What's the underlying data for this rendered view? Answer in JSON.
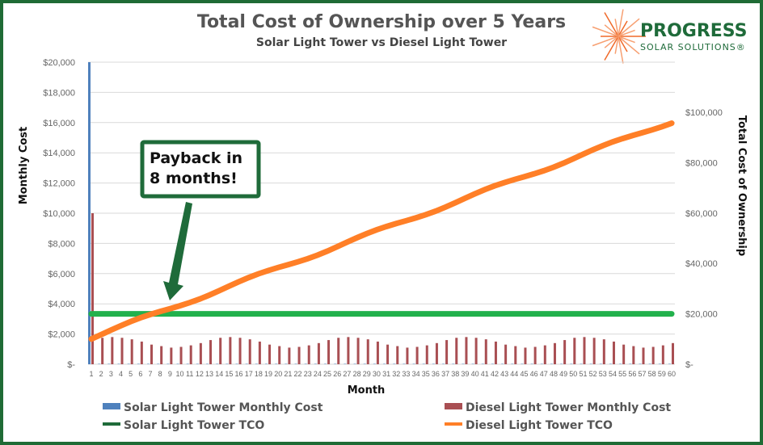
{
  "logo": {
    "name": "PROGRESS",
    "tagline": "SOLAR SOLUTIONS®"
  },
  "annotation": {
    "line1": "Payback in",
    "line2": "8 months!"
  },
  "colors": {
    "solar_monthly": "#4f81bd",
    "diesel_monthly": "#a94f53",
    "solar_tco": "#22b14c",
    "diesel_tco": "#ff7f27",
    "frame": "#1f6b35",
    "annotation": "#1f6b3a"
  },
  "chart_data": {
    "type": "bar+line",
    "title": "Total Cost of Ownership over 5 Years",
    "subtitle": "Solar Light Tower vs Diesel Light Tower",
    "xlabel": "Month",
    "ylabel": "Monthly Cost",
    "y2label": "Total Cost of Ownership",
    "ylim": [
      0,
      20000
    ],
    "y2lim": [
      0,
      120000
    ],
    "yticks": [
      "$-",
      "$2,000",
      "$4,000",
      "$6,000",
      "$8,000",
      "$10,000",
      "$12,000",
      "$14,000",
      "$16,000",
      "$18,000",
      "$20,000"
    ],
    "y2ticks": [
      "$-",
      "$20,000",
      "$40,000",
      "$60,000",
      "$80,000",
      "$100,000"
    ],
    "grid": true,
    "legend_position": "bottom",
    "x": [
      1,
      2,
      3,
      4,
      5,
      6,
      7,
      8,
      9,
      10,
      11,
      12,
      13,
      14,
      15,
      16,
      17,
      18,
      19,
      20,
      21,
      22,
      23,
      24,
      25,
      26,
      27,
      28,
      29,
      30,
      31,
      32,
      33,
      34,
      35,
      36,
      37,
      38,
      39,
      40,
      41,
      42,
      43,
      44,
      45,
      46,
      47,
      48,
      49,
      50,
      51,
      52,
      53,
      54,
      55,
      56,
      57,
      58,
      59,
      60
    ],
    "series": [
      {
        "name": "Solar Light Tower Monthly Cost",
        "type": "bar",
        "axis": "left",
        "values": [
          20000,
          0,
          0,
          0,
          0,
          0,
          0,
          0,
          0,
          0,
          0,
          0,
          0,
          0,
          0,
          0,
          0,
          0,
          0,
          0,
          0,
          0,
          0,
          0,
          0,
          0,
          0,
          0,
          0,
          0,
          0,
          0,
          0,
          0,
          0,
          0,
          0,
          0,
          0,
          0,
          0,
          0,
          0,
          0,
          0,
          0,
          0,
          0,
          0,
          0,
          0,
          0,
          0,
          0,
          0,
          0,
          0,
          0,
          0,
          0
        ]
      },
      {
        "name": "Diesel Light Tower Monthly Cost",
        "type": "bar",
        "axis": "left",
        "values": [
          10000,
          1750,
          1800,
          1750,
          1650,
          1500,
          1300,
          1200,
          1100,
          1150,
          1250,
          1400,
          1600,
          1750,
          1800,
          1750,
          1650,
          1500,
          1300,
          1200,
          1100,
          1150,
          1250,
          1400,
          1600,
          1750,
          1800,
          1750,
          1650,
          1500,
          1300,
          1200,
          1100,
          1150,
          1250,
          1400,
          1600,
          1750,
          1800,
          1750,
          1650,
          1500,
          1300,
          1200,
          1100,
          1150,
          1250,
          1400,
          1600,
          1750,
          1800,
          1750,
          1650,
          1500,
          1300,
          1200,
          1100,
          1150,
          1250,
          1400
        ]
      },
      {
        "name": "Solar Light Tower TCO",
        "type": "line",
        "axis": "right",
        "values": [
          20000,
          20000,
          20000,
          20000,
          20000,
          20000,
          20000,
          20000,
          20000,
          20000,
          20000,
          20000,
          20000,
          20000,
          20000,
          20000,
          20000,
          20000,
          20000,
          20000,
          20000,
          20000,
          20000,
          20000,
          20000,
          20000,
          20000,
          20000,
          20000,
          20000,
          20000,
          20000,
          20000,
          20000,
          20000,
          20000,
          20000,
          20000,
          20000,
          20000,
          20000,
          20000,
          20000,
          20000,
          20000,
          20000,
          20000,
          20000,
          20000,
          20000,
          20000,
          20000,
          20000,
          20000,
          20000,
          20000,
          20000,
          20000,
          20000,
          20000
        ]
      },
      {
        "name": "Diesel Light Tower TCO",
        "type": "line",
        "axis": "right",
        "values": [
          10000,
          11750,
          13550,
          15300,
          16950,
          18450,
          19750,
          20950,
          22050,
          23200,
          24450,
          25850,
          27450,
          29200,
          31000,
          32750,
          34400,
          35900,
          37200,
          38400,
          39500,
          40650,
          41900,
          43300,
          44900,
          46650,
          48450,
          50200,
          51850,
          53350,
          54650,
          55850,
          56950,
          58100,
          59350,
          60750,
          62350,
          64100,
          65900,
          67650,
          69300,
          70800,
          72100,
          73300,
          74400,
          75550,
          76800,
          78200,
          79800,
          81550,
          83350,
          85100,
          86750,
          88250,
          89550,
          90750,
          91850,
          93000,
          94250,
          95650
        ]
      }
    ]
  }
}
